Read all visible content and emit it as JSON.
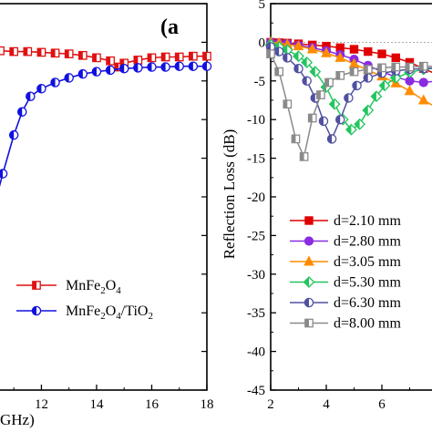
{
  "chart_data": [
    {
      "type": "line",
      "panel_label": "(a",
      "xlabel_partial": "GHz)",
      "xlim": [
        10.3,
        18
      ],
      "ylim": [
        -45,
        5
      ],
      "x_ticks": [
        12,
        14,
        16,
        18
      ],
      "series": [
        {
          "name": "MnFe₂O₄",
          "name_parts": [
            "MnFe",
            "2",
            "O",
            "4"
          ],
          "color": "#e01010",
          "marker": "half-square",
          "x": [
            10.3,
            10.5,
            11,
            11.5,
            12,
            12.5,
            13,
            13.5,
            14,
            14.5,
            14.8,
            15,
            15.5,
            16,
            16.5,
            17,
            17.5,
            18
          ],
          "y": [
            -1.1,
            -1.1,
            -1.2,
            -1.2,
            -1.3,
            -1.4,
            -1.5,
            -1.7,
            -2.0,
            -2.4,
            -3.2,
            -2.7,
            -2.3,
            -2.0,
            -1.9,
            -1.9,
            -1.8,
            -1.8
          ]
        },
        {
          "name": "MnFe₂O₄/TiO₂",
          "name_parts": [
            "MnFe",
            "2",
            "O",
            "4",
            "/TiO",
            "2"
          ],
          "color": "#1010e0",
          "marker": "half-circle",
          "x": [
            10.3,
            10.6,
            11,
            11.3,
            11.6,
            12,
            12.5,
            13,
            13.5,
            14,
            14.5,
            15,
            15.5,
            16,
            16.5,
            17,
            17.5,
            18
          ],
          "y": [
            -21,
            -17,
            -12,
            -9,
            -7,
            -6.0,
            -5.2,
            -4.6,
            -4.1,
            -3.8,
            -3.6,
            -3.4,
            -3.3,
            -3.2,
            -3.2,
            -3.1,
            -3.1,
            -3.1
          ]
        }
      ]
    },
    {
      "type": "line",
      "ylabel": "Reflection Loss (dB)",
      "xlim": [
        2,
        8
      ],
      "ylim": [
        -45,
        5
      ],
      "x_ticks": [
        2,
        4,
        6
      ],
      "y_ticks": [
        5,
        0,
        -5,
        -10,
        -15,
        -20,
        -25,
        -30,
        -35,
        -40,
        -45
      ],
      "series": [
        {
          "name": "d=2.10 mm",
          "color": "#e00000",
          "marker": "square",
          "x": [
            2,
            2.3,
            2.6,
            3,
            3.5,
            4,
            4.5,
            5,
            5.5,
            6,
            6.5,
            7,
            7.5,
            8
          ],
          "y": [
            0,
            -0.05,
            -0.1,
            -0.2,
            -0.35,
            -0.5,
            -0.7,
            -0.9,
            -1.2,
            -1.5,
            -2.0,
            -2.6,
            -3.4,
            -4.2
          ]
        },
        {
          "name": "d=2.80 mm",
          "color": "#8a2be2",
          "marker": "circle",
          "x": [
            2,
            2.3,
            2.6,
            3,
            3.5,
            4,
            4.5,
            5,
            5.5,
            6,
            6.5,
            7,
            7.5,
            8
          ],
          "y": [
            0,
            -0.1,
            -0.2,
            -0.4,
            -0.7,
            -1.1,
            -1.6,
            -2.2,
            -3.0,
            -3.8,
            -4.5,
            -5.0,
            -5.2,
            -5.0
          ]
        },
        {
          "name": "d=3.05 mm",
          "color": "#ff8c00",
          "marker": "triangle",
          "x": [
            2,
            2.3,
            2.6,
            3,
            3.5,
            4,
            4.5,
            5,
            5.5,
            6,
            6.5,
            7,
            7.5,
            8
          ],
          "y": [
            0,
            -0.1,
            -0.3,
            -0.5,
            -0.9,
            -1.4,
            -2.0,
            -2.8,
            -3.6,
            -4.4,
            -5.3,
            -6.3,
            -7.5,
            -8.5
          ]
        },
        {
          "name": "d=5.30 mm",
          "color": "#22c55e",
          "marker": "diamond",
          "x": [
            2,
            2.3,
            2.6,
            3,
            3.3,
            3.6,
            4,
            4.3,
            4.6,
            4.9,
            5.2,
            5.5,
            5.8,
            6.1,
            6.5,
            7,
            7.5,
            8
          ],
          "y": [
            -0.3,
            -0.6,
            -1.0,
            -1.8,
            -2.6,
            -3.8,
            -5.8,
            -8.0,
            -10.0,
            -11.3,
            -10.6,
            -8.8,
            -7.0,
            -5.6,
            -4.6,
            -3.9,
            -3.5,
            -3.3
          ]
        },
        {
          "name": "d=6.30 mm",
          "color": "#5050a0",
          "marker": "half-circle",
          "x": [
            2,
            2.3,
            2.6,
            3,
            3.3,
            3.6,
            3.9,
            4.2,
            4.5,
            4.8,
            5.1,
            5.5,
            6,
            6.5,
            7,
            7.5,
            8
          ],
          "y": [
            -0.6,
            -1.2,
            -2.0,
            -3.4,
            -5.0,
            -7.2,
            -10.2,
            -12.5,
            -10.0,
            -7.2,
            -5.6,
            -4.6,
            -4.0,
            -3.7,
            -3.5,
            -3.4,
            -3.3
          ]
        },
        {
          "name": "d=8.00 mm",
          "color": "#8a8a8a",
          "marker": "half-square",
          "x": [
            2,
            2.3,
            2.6,
            2.9,
            3.2,
            3.5,
            3.8,
            4.1,
            4.5,
            5,
            5.5,
            6,
            6.5,
            7,
            7.5,
            8
          ],
          "y": [
            -1.5,
            -3.8,
            -8.0,
            -12.5,
            -14.8,
            -9.8,
            -6.8,
            -5.2,
            -4.3,
            -3.8,
            -3.5,
            -3.3,
            -3.2,
            -3.2,
            -3.1,
            -3.1
          ]
        }
      ]
    }
  ]
}
